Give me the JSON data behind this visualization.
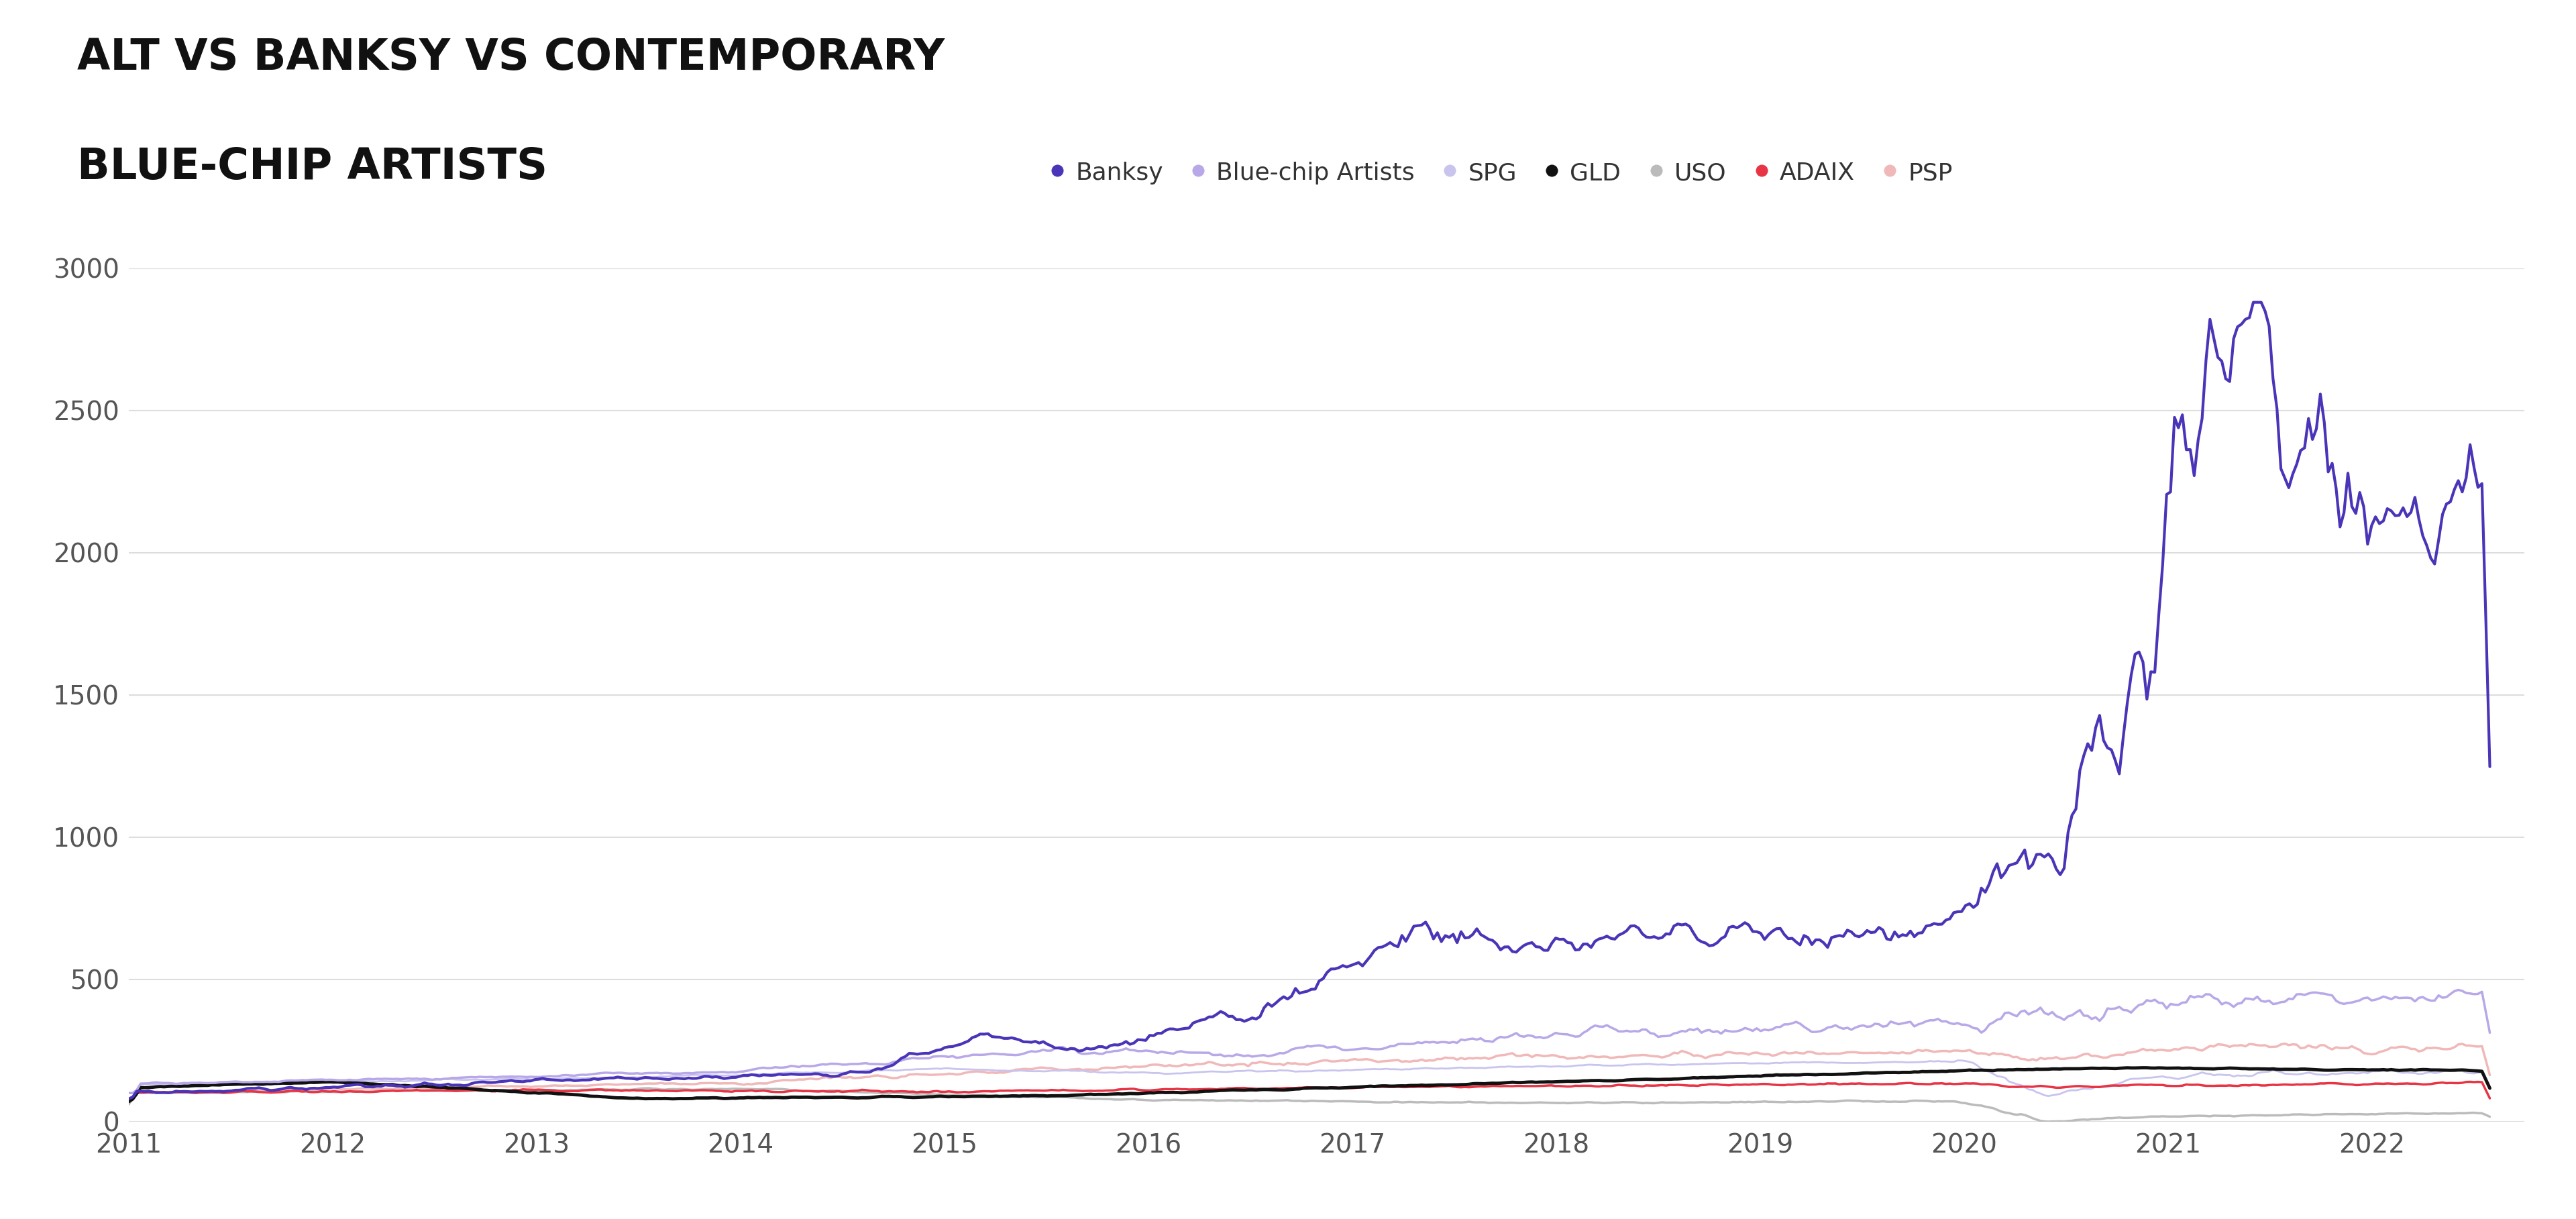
{
  "title_line1": "ALT VS BANKSY VS CONTEMPORARY",
  "title_line2": "BLUE-CHIP ARTISTS",
  "background_color": "#ffffff",
  "grid_color": "#dddddd",
  "ylim": [
    0,
    3000
  ],
  "yticks": [
    0,
    500,
    1000,
    1500,
    2000,
    2500,
    3000
  ],
  "xlim_start": 2011.0,
  "xlim_end": 2022.75,
  "xtick_years": [
    2011,
    2012,
    2013,
    2014,
    2015,
    2016,
    2017,
    2018,
    2019,
    2020,
    2021,
    2022
  ],
  "series": [
    {
      "name": "Banksy",
      "color": "#4a34b8",
      "linewidth": 3.0,
      "zorder": 10
    },
    {
      "name": "Blue-chip Artists",
      "color": "#b8a8e8",
      "linewidth": 2.5,
      "zorder": 9
    },
    {
      "name": "SPG",
      "color": "#c8c4ee",
      "linewidth": 2.0,
      "zorder": 5
    },
    {
      "name": "GLD",
      "color": "#111111",
      "linewidth": 3.5,
      "zorder": 8
    },
    {
      "name": "USO",
      "color": "#bbbbbb",
      "linewidth": 2.5,
      "zorder": 6
    },
    {
      "name": "ADAIX",
      "color": "#e83545",
      "linewidth": 2.5,
      "zorder": 7
    },
    {
      "name": "PSP",
      "color": "#f0b8b8",
      "linewidth": 2.5,
      "zorder": 4
    }
  ],
  "title_fontsize": 46,
  "legend_fontsize": 26,
  "tick_fontsize": 28,
  "legend_dot_size": 14
}
